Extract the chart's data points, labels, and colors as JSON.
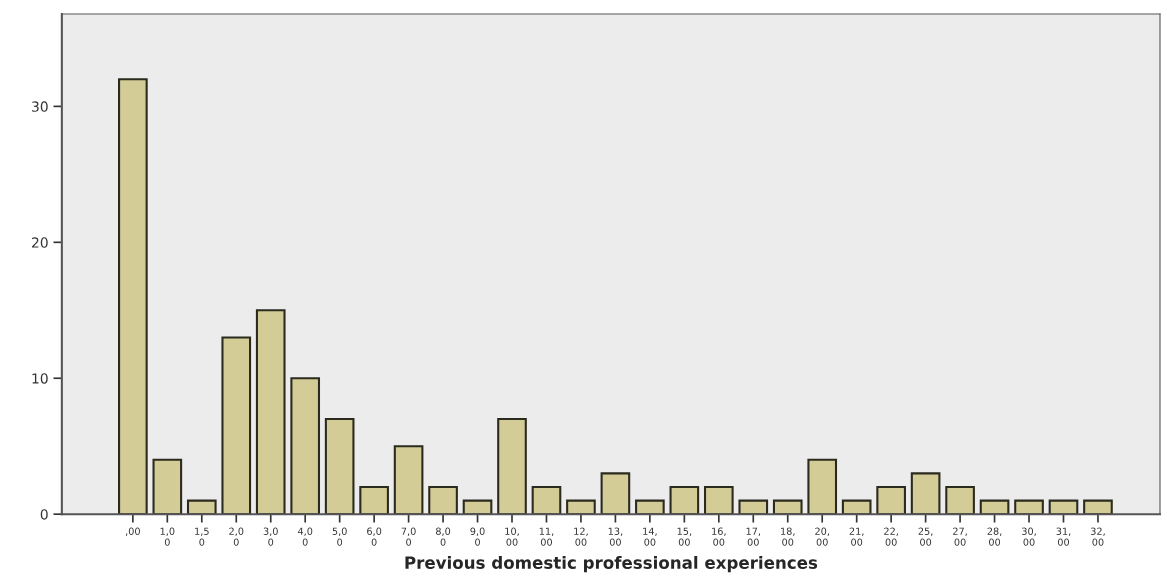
{
  "chart_data": {
    "type": "bar",
    "xlabel": "Previous domestic professional experiences",
    "categories": [
      ",00",
      "1,0\n0",
      "1,5\n0",
      "2,0\n0",
      "3,0\n0",
      "4,0\n0",
      "5,0\n0",
      "6,0\n0",
      "7,0\n0",
      "8,0\n0",
      "9,0\n0",
      "10,\n00",
      "11,\n00",
      "12,\n00",
      "13,\n00",
      "14,\n00",
      "15,\n00",
      "16,\n00",
      "17,\n00",
      "18,\n00",
      "20,\n00",
      "21,\n00",
      "22,\n00",
      "25,\n00",
      "27,\n00",
      "28,\n00",
      "30,\n00",
      "31,\n00",
      "32,\n00"
    ],
    "values": [
      32,
      4,
      1,
      13,
      15,
      10,
      7,
      2,
      5,
      2,
      1,
      7,
      2,
      1,
      3,
      1,
      2,
      2,
      1,
      1,
      4,
      1,
      2,
      3,
      2,
      1,
      1,
      1,
      1
    ],
    "color": "#d3cc96",
    "ylim": [
      0,
      36.8
    ],
    "yticks": [
      0,
      10,
      20,
      30
    ],
    "grid": false,
    "legend": false
  }
}
